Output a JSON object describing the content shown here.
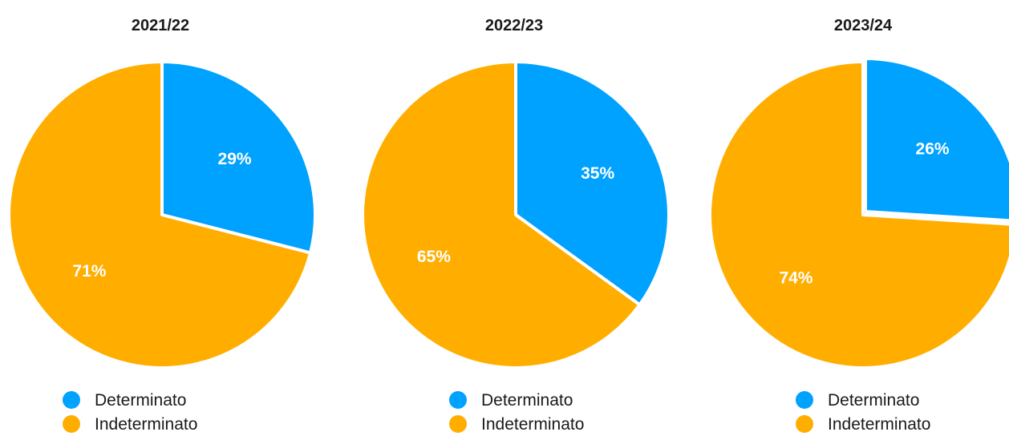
{
  "chart_data": [
    {
      "type": "pie",
      "title": "2021/22",
      "categories": [
        "Determinato",
        "Indeterminato"
      ],
      "values": [
        29,
        71
      ],
      "value_labels": [
        "29%",
        "71%"
      ],
      "colors": [
        "#00A2FF",
        "#FFAE00"
      ],
      "legend": "bottom"
    },
    {
      "type": "pie",
      "title": "2022/23",
      "categories": [
        "Determinato",
        "Indeterminato"
      ],
      "values": [
        35,
        65
      ],
      "value_labels": [
        "35%",
        "65%"
      ],
      "colors": [
        "#00A2FF",
        "#FFAE00"
      ],
      "legend": "bottom"
    },
    {
      "type": "pie",
      "title": "2023/24",
      "categories": [
        "Determinato",
        "Indeterminato"
      ],
      "values": [
        26,
        74
      ],
      "value_labels": [
        "26%",
        "74%"
      ],
      "colors": [
        "#00A2FF",
        "#FFAE00"
      ],
      "legend": "bottom"
    }
  ]
}
